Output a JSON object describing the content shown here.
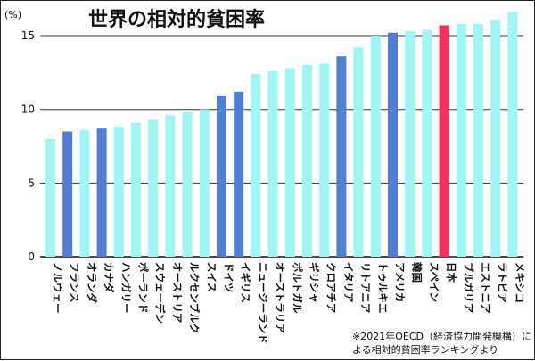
{
  "chart_data": {
    "type": "bar",
    "title": "世界の相対的貧困率",
    "ylabel": "(%)",
    "ylim": [
      0,
      17
    ],
    "yticks": [
      0,
      5,
      10,
      15
    ],
    "grid": true,
    "categories": [
      "ノルウェー",
      "フランス",
      "オランダ",
      "カナダ",
      "ハンガリー",
      "ポーランド",
      "スウェーデン",
      "オーストリア",
      "ルクセンブルク",
      "スイス",
      "ドイツ",
      "イギリス",
      "ニュージーランド",
      "オーストラリア",
      "ポルトガル",
      "ギリシャ",
      "クロアチア",
      "イタリア",
      "リトアニア",
      "トゥルキエ",
      "アメリカ",
      "韓国",
      "スペイン",
      "日本",
      "ブルガリア",
      "エストニア",
      "ラトビア",
      "メキシコ"
    ],
    "values": [
      8.0,
      8.5,
      8.6,
      8.7,
      8.8,
      9.1,
      9.3,
      9.6,
      9.8,
      10.0,
      10.9,
      11.2,
      12.4,
      12.6,
      12.8,
      13.0,
      13.1,
      13.6,
      14.2,
      15.0,
      15.2,
      15.3,
      15.4,
      15.7,
      15.8,
      15.8,
      16.1,
      16.6
    ],
    "highlight": {
      "日本": "red",
      "フランス": "blue",
      "カナダ": "blue",
      "ドイツ": "blue",
      "イギリス": "blue",
      "イタリア": "blue",
      "アメリカ": "blue"
    },
    "colors": {
      "default": "#9ff5f2",
      "blue": "#4f7ed4",
      "red": "#f5325c"
    },
    "note": [
      "※2021年OECD（経済協力開発機構）に",
      "よる相対的貧困率ランキングより"
    ]
  }
}
